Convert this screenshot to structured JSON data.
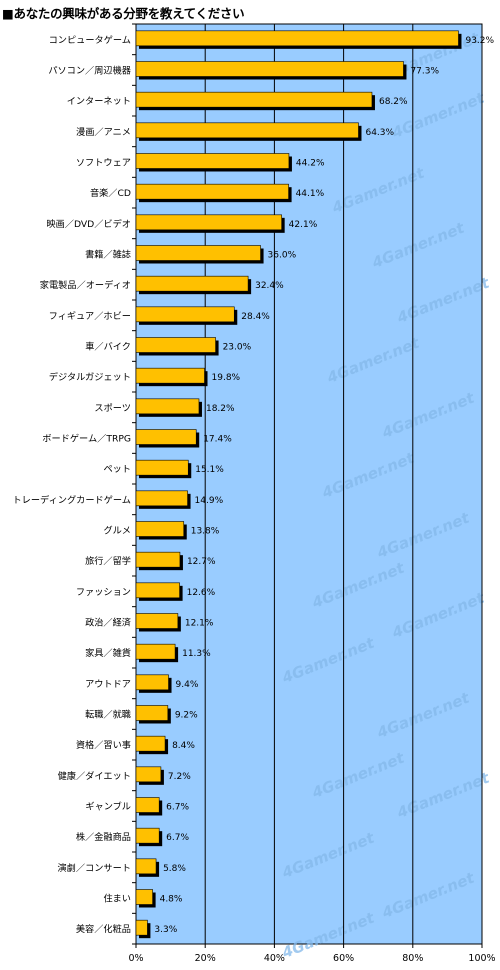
{
  "title": "■あなたの興味がある分野を教えてください",
  "watermark": "4Gamer.net",
  "chart_data": {
    "type": "bar",
    "orientation": "horizontal",
    "title": "■あなたの興味がある分野を教えてください",
    "xlabel": "",
    "ylabel": "",
    "xlim": [
      0,
      100
    ],
    "grid": true,
    "legend": "none",
    "x_ticks": [
      "0%",
      "20%",
      "40%",
      "60%",
      "80%",
      "100%"
    ],
    "categories": [
      "コンピュータゲーム",
      "パソコン／周辺機器",
      "インターネット",
      "漫画／アニメ",
      "ソフトウェア",
      "音楽／CD",
      "映画／DVD／ビデオ",
      "書籍／雑誌",
      "家電製品／オーディオ",
      "フィギュア／ホビー",
      "車／バイク",
      "デジタルガジェット",
      "スポーツ",
      "ボードゲーム／TRPG",
      "ペット",
      "トレーディングカードゲーム",
      "グルメ",
      "旅行／留学",
      "ファッション",
      "政治／経済",
      "家具／雑貨",
      "アウトドア",
      "転職／就職",
      "資格／習い事",
      "健康／ダイエット",
      "ギャンブル",
      "株／金融商品",
      "演劇／コンサート",
      "住まい",
      "美容／化粧品"
    ],
    "values": [
      93.2,
      77.3,
      68.2,
      64.3,
      44.2,
      44.1,
      42.1,
      36.0,
      32.4,
      28.4,
      23.0,
      19.8,
      18.2,
      17.4,
      15.1,
      14.9,
      13.8,
      12.7,
      12.6,
      12.1,
      11.3,
      9.4,
      9.2,
      8.4,
      7.2,
      6.7,
      6.7,
      5.8,
      4.8,
      3.3
    ],
    "value_labels": [
      "93.2%",
      "77.3%",
      "68.2%",
      "64.3%",
      "44.2%",
      "44.1%",
      "42.1%",
      "36.0%",
      "32.4%",
      "28.4%",
      "23.0%",
      "19.8%",
      "18.2%",
      "17.4%",
      "15.1%",
      "14.9%",
      "13.8%",
      "12.7%",
      "12.6%",
      "12.1%",
      "11.3%",
      "9.4%",
      "9.2%",
      "8.4%",
      "7.2%",
      "6.7%",
      "6.7%",
      "5.8%",
      "4.8%",
      "3.3%"
    ],
    "colors": {
      "plot_background": "#99ccff",
      "bar_fill": "#ffc000",
      "bar_shadow": "#000000",
      "gridline": "#000000",
      "watermark": "#84b9ea"
    }
  }
}
